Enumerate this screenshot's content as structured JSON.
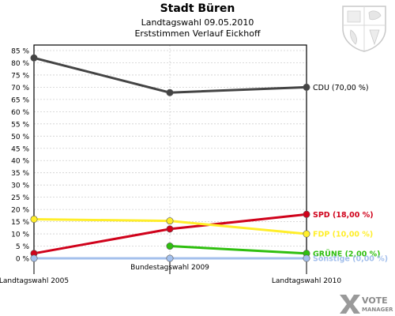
{
  "header": {
    "title": "Stadt Büren",
    "subtitle": "Landtagswahl 09.05.2010",
    "subtitle2": "Erststimmen Verlauf Eickhoff"
  },
  "brand": {
    "logo_word1": "VOTE",
    "logo_word2": "MANAGER"
  },
  "chart_data": {
    "type": "line",
    "categories": [
      "Landtagswahl 2005",
      "Bundestagswahl 2009",
      "Landtagswahl 2010"
    ],
    "ylim": [
      0,
      85
    ],
    "y_ticks": [
      0,
      5,
      10,
      15,
      20,
      25,
      30,
      35,
      40,
      45,
      50,
      55,
      60,
      65,
      70,
      75,
      80,
      85
    ],
    "y_tick_suffix": " %",
    "grid": true,
    "series": [
      {
        "name": "CDU",
        "color": "#444444",
        "values": [
          82,
          67.8,
          70
        ],
        "end_label": "CDU (70,00 %)"
      },
      {
        "name": "SPD",
        "color": "#d0021b",
        "values": [
          2,
          12,
          18
        ],
        "end_label": "SPD (18,00 %)"
      },
      {
        "name": "FDP",
        "color": "#ffee2a",
        "values": [
          16,
          15.3,
          10
        ],
        "end_label": "FDP (10,00 %)"
      },
      {
        "name": "GRÜNE",
        "color": "#2fbf0f",
        "values": [
          null,
          5,
          2
        ],
        "end_label": "GRÜNE (2,00 %)"
      },
      {
        "name": "Sonstige",
        "color": "#a4c0ec",
        "values": [
          0,
          0,
          0
        ],
        "end_label": "Sonstige (0,00 %)"
      }
    ]
  }
}
